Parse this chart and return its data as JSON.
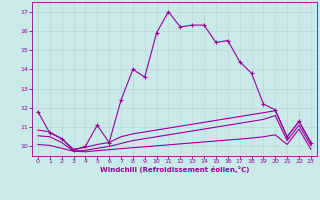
{
  "xlabel": "Windchill (Refroidissement éolien,°C)",
  "xlim": [
    -0.5,
    23.5
  ],
  "ylim": [
    9.5,
    17.5
  ],
  "yticks": [
    10,
    11,
    12,
    13,
    14,
    15,
    16,
    17
  ],
  "xticks": [
    0,
    1,
    2,
    3,
    4,
    5,
    6,
    7,
    8,
    9,
    10,
    11,
    12,
    13,
    14,
    15,
    16,
    17,
    18,
    19,
    20,
    21,
    22,
    23
  ],
  "bg_color": "#caeaea",
  "line_color": "#990099",
  "grid_color": "#b8d8d8",
  "line1_x": [
    0,
    1,
    2,
    3,
    4,
    5,
    6,
    7,
    8,
    9,
    10,
    11,
    12,
    13,
    14,
    15,
    16,
    17,
    18,
    19,
    20,
    21,
    22,
    23
  ],
  "line1_y": [
    11.8,
    10.7,
    10.4,
    9.8,
    10.0,
    11.1,
    10.2,
    12.4,
    14.0,
    13.6,
    15.9,
    17.0,
    16.2,
    16.3,
    16.3,
    15.4,
    15.5,
    14.4,
    13.8,
    12.2,
    11.9,
    10.5,
    11.3,
    10.2
  ],
  "line2_x": [
    0,
    1,
    2,
    3,
    4,
    5,
    6,
    7,
    8,
    9,
    10,
    11,
    12,
    13,
    14,
    15,
    16,
    17,
    18,
    19,
    20,
    21,
    22,
    23
  ],
  "line2_y": [
    10.85,
    10.75,
    10.4,
    9.85,
    9.95,
    10.1,
    10.2,
    10.5,
    10.65,
    10.75,
    10.85,
    10.95,
    11.05,
    11.15,
    11.25,
    11.35,
    11.45,
    11.55,
    11.65,
    11.75,
    11.85,
    10.5,
    11.3,
    10.2
  ],
  "line3_x": [
    0,
    1,
    2,
    3,
    4,
    5,
    6,
    7,
    8,
    9,
    10,
    11,
    12,
    13,
    14,
    15,
    16,
    17,
    18,
    19,
    20,
    21,
    22,
    23
  ],
  "line3_y": [
    10.55,
    10.5,
    10.2,
    9.75,
    9.8,
    9.9,
    10.0,
    10.15,
    10.3,
    10.4,
    10.5,
    10.6,
    10.7,
    10.8,
    10.9,
    11.0,
    11.1,
    11.2,
    11.3,
    11.4,
    11.6,
    10.3,
    11.1,
    10.05
  ],
  "line4_x": [
    0,
    1,
    2,
    3,
    4,
    5,
    6,
    7,
    8,
    9,
    10,
    11,
    12,
    13,
    14,
    15,
    16,
    17,
    18,
    19,
    20,
    21,
    22,
    23
  ],
  "line4_y": [
    10.1,
    10.05,
    9.9,
    9.75,
    9.72,
    9.78,
    9.83,
    9.88,
    9.93,
    9.98,
    10.03,
    10.08,
    10.13,
    10.18,
    10.23,
    10.28,
    10.33,
    10.38,
    10.43,
    10.5,
    10.6,
    10.1,
    10.9,
    9.85
  ]
}
